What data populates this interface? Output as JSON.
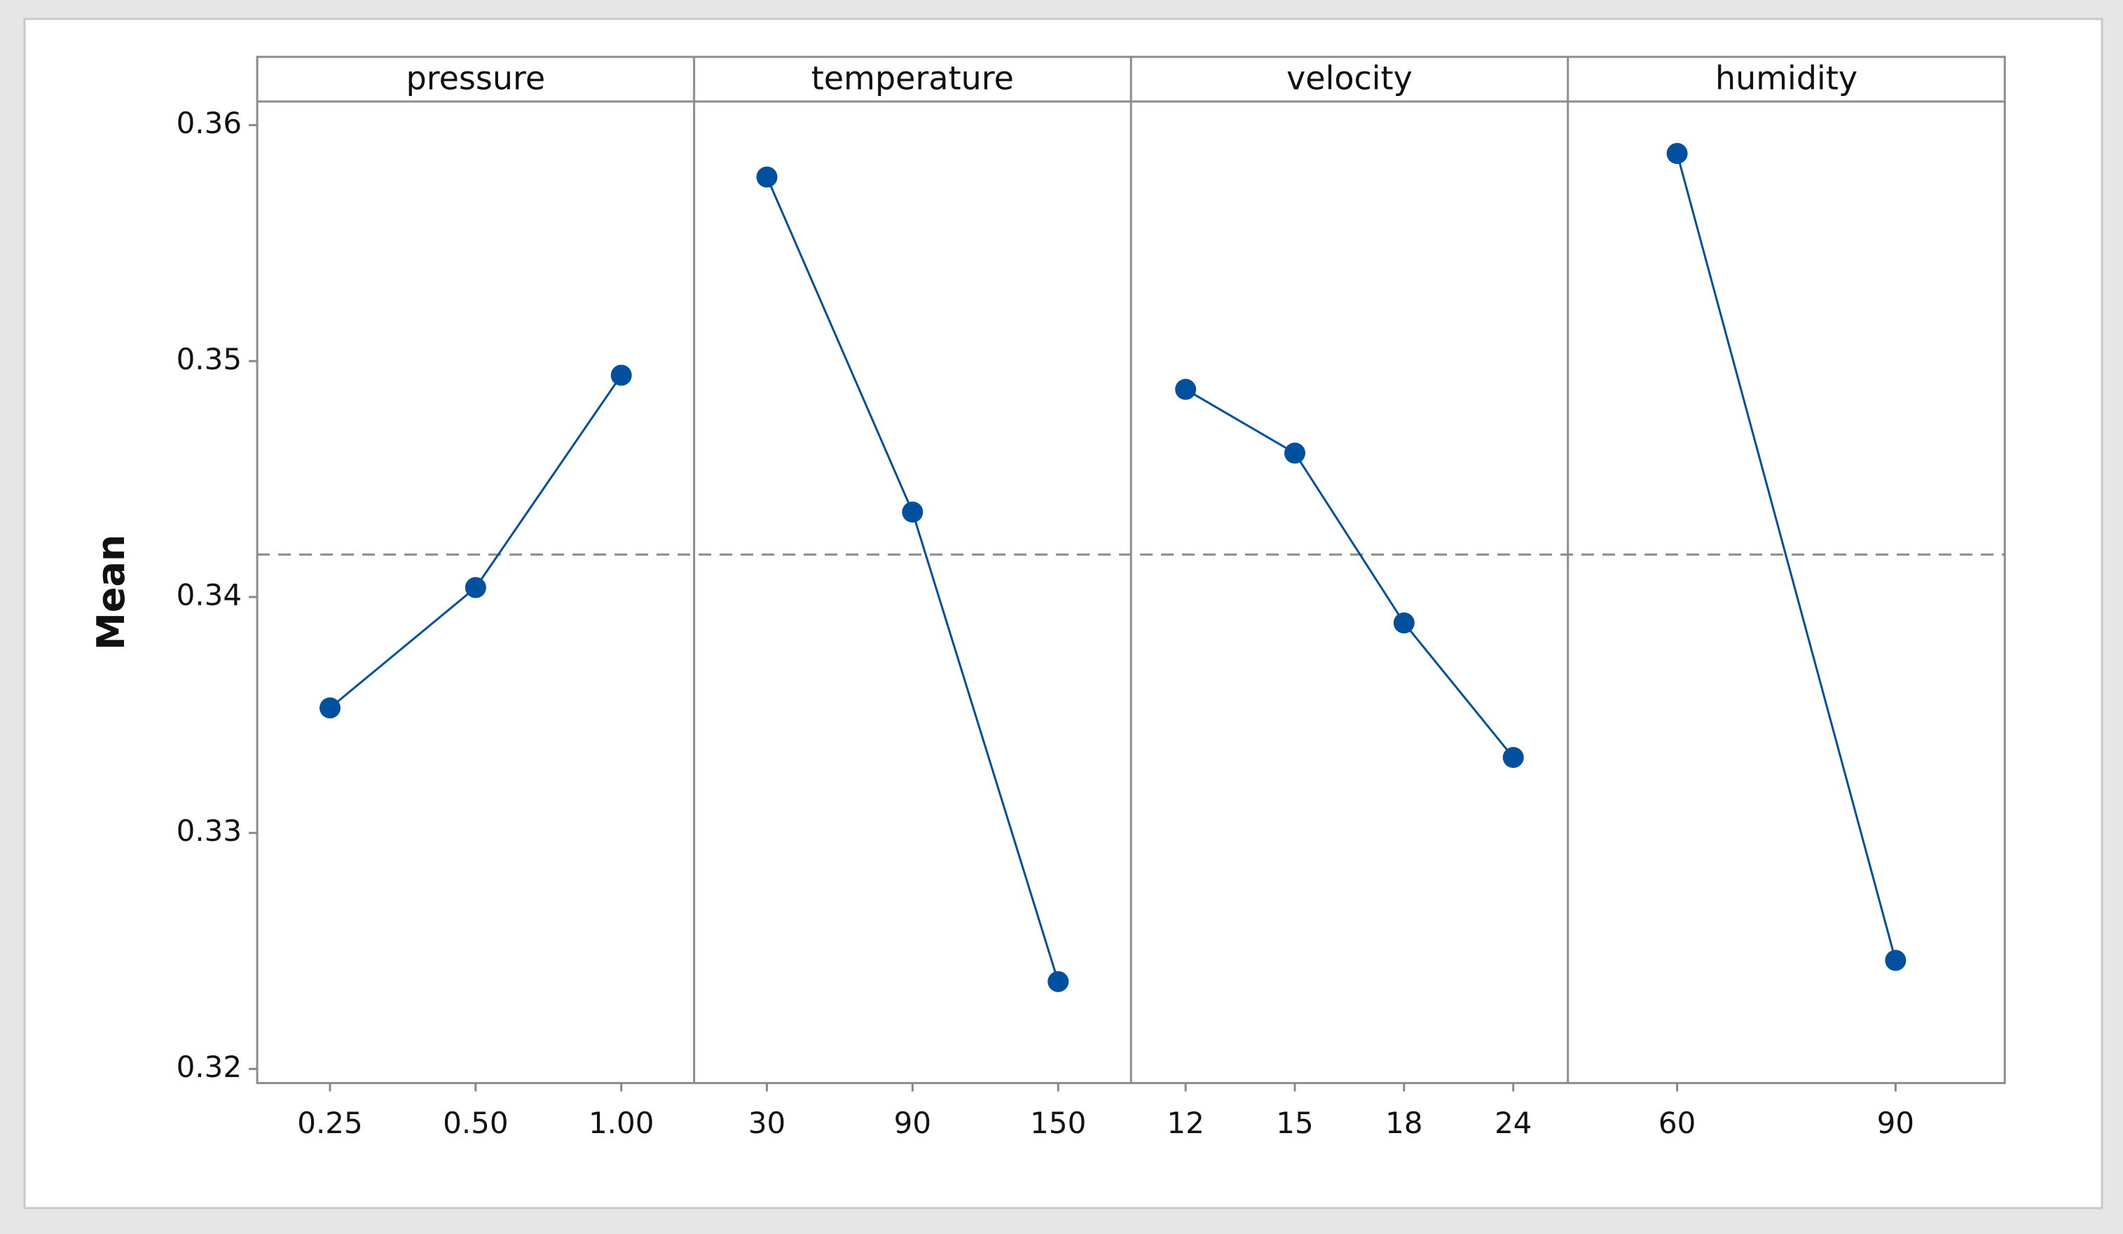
{
  "chart_data": {
    "type": "line",
    "ylabel": "Mean",
    "ylim": [
      0.3194,
      0.361
    ],
    "yticks": [
      0.32,
      0.33,
      0.34,
      0.35,
      0.36
    ],
    "reference_line": 0.3418,
    "color": "#0050a0",
    "panels": [
      {
        "title": "pressure",
        "categories": [
          "0.25",
          "0.50",
          "1.00"
        ],
        "values": [
          0.3353,
          0.3404,
          0.3494
        ]
      },
      {
        "title": "temperature",
        "categories": [
          "30",
          "90",
          "150"
        ],
        "values": [
          0.3578,
          0.3436,
          0.3237
        ]
      },
      {
        "title": "velocity",
        "categories": [
          "12",
          "15",
          "18",
          "24"
        ],
        "values": [
          0.3488,
          0.3461,
          0.3389,
          0.3332
        ]
      },
      {
        "title": "humidity",
        "categories": [
          "60",
          "90"
        ],
        "values": [
          0.3588,
          0.3246
        ]
      }
    ]
  }
}
